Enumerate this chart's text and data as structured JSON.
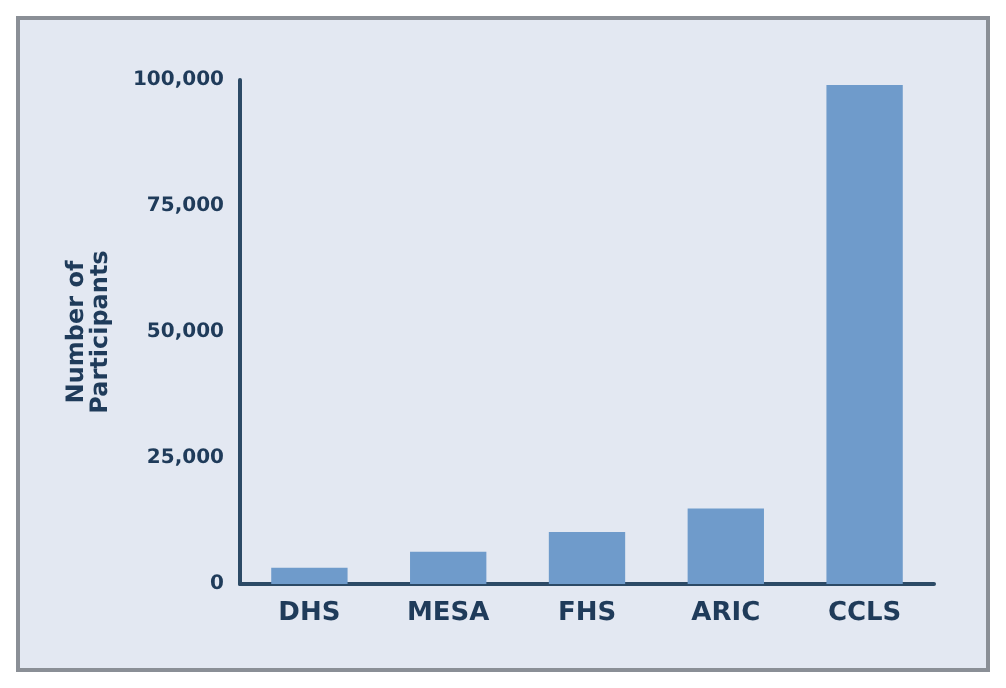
{
  "chart_data": {
    "type": "bar",
    "ylabel": "Number of\nParticipants",
    "categories": [
      "DHS",
      "MESA",
      "FHS",
      "ARIC",
      "CCLS"
    ],
    "values": [
      3200,
      6400,
      10300,
      15000,
      99000
    ],
    "color": "#6f9bcb",
    "ylim": [
      0,
      100000
    ],
    "yticks": [
      0,
      {
        "value": 25000,
        "label": "25,000"
      },
      {
        "value": 50000,
        "label": "50,000"
      },
      {
        "value": 75000,
        "label": "75,000"
      },
      {
        "value": 100000,
        "label": "100,000"
      }
    ],
    "grid": false
  }
}
